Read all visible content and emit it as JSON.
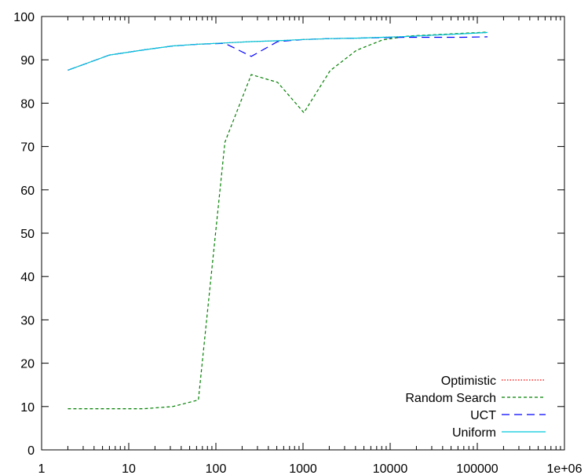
{
  "chart_data": {
    "type": "line",
    "title": "",
    "xlabel": "",
    "ylabel": "",
    "xscale": "log",
    "xlim": [
      1,
      1000000
    ],
    "ylim": [
      0,
      100
    ],
    "grid": false,
    "legend_position": "bottom-right",
    "x_ticks": [
      {
        "value": 1,
        "label": "1"
      },
      {
        "value": 10,
        "label": "10"
      },
      {
        "value": 100,
        "label": "100"
      },
      {
        "value": 1000,
        "label": "1000"
      },
      {
        "value": 10000,
        "label": "10000"
      },
      {
        "value": 100000,
        "label": "100000"
      },
      {
        "value": 1000000,
        "label": "1e+06"
      }
    ],
    "y_ticks": [
      {
        "value": 0,
        "label": "0"
      },
      {
        "value": 10,
        "label": "10"
      },
      {
        "value": 20,
        "label": "20"
      },
      {
        "value": 30,
        "label": "30"
      },
      {
        "value": 40,
        "label": "40"
      },
      {
        "value": 50,
        "label": "50"
      },
      {
        "value": 60,
        "label": "60"
      },
      {
        "value": 70,
        "label": "70"
      },
      {
        "value": 80,
        "label": "80"
      },
      {
        "value": 90,
        "label": "90"
      },
      {
        "value": 100,
        "label": "100"
      }
    ],
    "series": [
      {
        "name": "Optimistic",
        "color": "#ff0000",
        "dash": "dotted",
        "points": [
          [
            2,
            87.6
          ],
          [
            6,
            91.1
          ],
          [
            15,
            92.3
          ],
          [
            32,
            93.2
          ],
          [
            63,
            93.6
          ],
          [
            127,
            93.9
          ],
          [
            255,
            94.2
          ],
          [
            511,
            94.4
          ],
          [
            1023,
            94.7
          ],
          [
            2047,
            94.9
          ],
          [
            4095,
            95.0
          ],
          [
            8191,
            95.2
          ],
          [
            16383,
            95.4
          ],
          [
            32767,
            95.7
          ],
          [
            65535,
            96.0
          ],
          [
            131071,
            96.3
          ]
        ]
      },
      {
        "name": "Random Search",
        "color": "#008000",
        "dash": "dashed",
        "points": [
          [
            2,
            9.5
          ],
          [
            6,
            9.5
          ],
          [
            15,
            9.5
          ],
          [
            32,
            10.0
          ],
          [
            63,
            11.5
          ],
          [
            127,
            71.0
          ],
          [
            255,
            86.6
          ],
          [
            511,
            84.8
          ],
          [
            1023,
            77.8
          ],
          [
            2047,
            87.5
          ],
          [
            4095,
            92.2
          ],
          [
            8191,
            94.6
          ],
          [
            16383,
            95.5
          ],
          [
            32767,
            95.8
          ],
          [
            65535,
            96.1
          ],
          [
            131071,
            96.4
          ]
        ]
      },
      {
        "name": "UCT",
        "color": "#0000ff",
        "dash": "longdash",
        "points": [
          [
            2,
            87.6
          ],
          [
            6,
            91.1
          ],
          [
            15,
            92.3
          ],
          [
            32,
            93.2
          ],
          [
            63,
            93.6
          ],
          [
            127,
            93.8
          ],
          [
            255,
            90.8
          ],
          [
            511,
            94.2
          ],
          [
            1023,
            94.7
          ],
          [
            2047,
            94.9
          ],
          [
            4095,
            95.0
          ],
          [
            8191,
            95.1
          ],
          [
            16383,
            95.2
          ],
          [
            32767,
            95.2
          ],
          [
            65535,
            95.2
          ],
          [
            131071,
            95.3
          ]
        ]
      },
      {
        "name": "Uniform",
        "color": "#00c8dc",
        "dash": "solid",
        "points": [
          [
            2,
            87.6
          ],
          [
            6,
            91.1
          ],
          [
            15,
            92.3
          ],
          [
            32,
            93.2
          ],
          [
            63,
            93.6
          ],
          [
            127,
            93.9
          ],
          [
            255,
            94.2
          ],
          [
            511,
            94.4
          ],
          [
            1023,
            94.7
          ],
          [
            2047,
            94.9
          ],
          [
            4095,
            95.0
          ],
          [
            8191,
            95.2
          ],
          [
            16383,
            95.4
          ],
          [
            32767,
            95.7
          ],
          [
            65535,
            96.0
          ],
          [
            131071,
            96.3
          ]
        ]
      }
    ]
  }
}
